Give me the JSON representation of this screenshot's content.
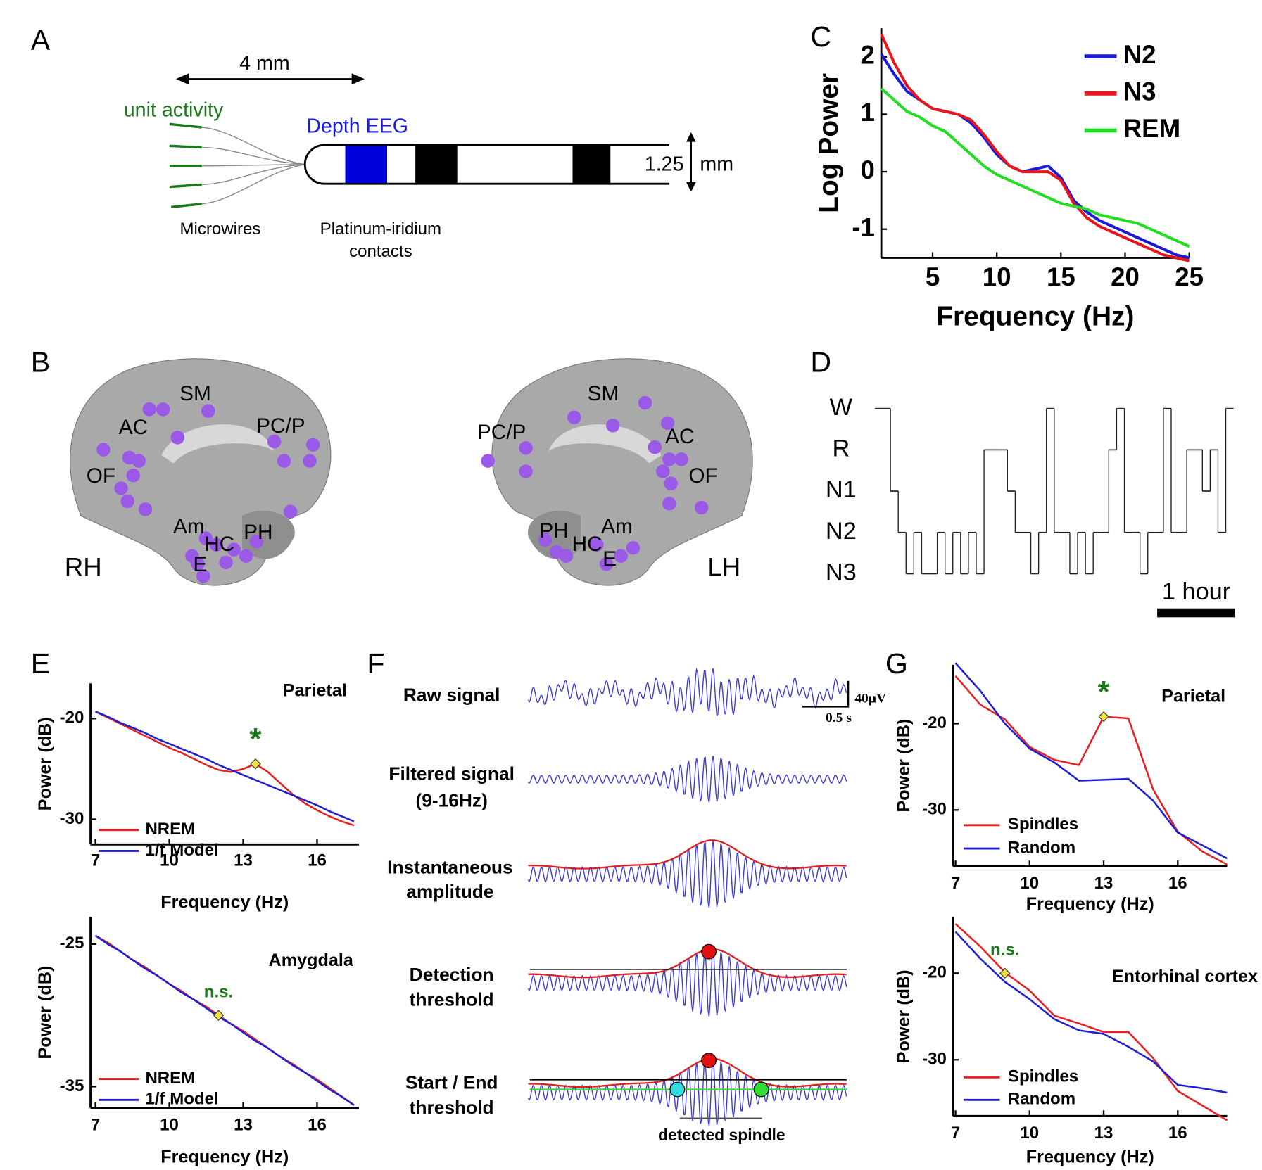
{
  "panel_labels": [
    "A",
    "B",
    "C",
    "D",
    "E",
    "F",
    "G"
  ],
  "electrode": {
    "length": "4 mm",
    "unit_activity": "unit activity",
    "depth_eeg": "Depth EEG",
    "diameter": "1.25",
    "diameter_unit": "mm",
    "microwires": "Microwires",
    "contacts": [
      "Platinum-iridium",
      "contacts"
    ]
  },
  "brain": {
    "regions": [
      "SM",
      "AC",
      "PC/P",
      "OF",
      "Am",
      "HC",
      "PH",
      "E"
    ],
    "hemispheres": [
      "RH",
      "LH"
    ]
  },
  "spindle_detection": {
    "steps": [
      [
        "Raw signal"
      ],
      [
        "Filtered signal",
        "(9-16Hz)"
      ],
      [
        "Instantaneous",
        "amplitude"
      ],
      [
        "Detection",
        "threshold"
      ],
      [
        "Start / End",
        "threshold"
      ]
    ],
    "scale_amplitude": "40µV",
    "scale_time": "0.5 s",
    "caption": "detected spindle"
  },
  "chart_data": [
    {
      "type": "line",
      "xlabel": "Frequency (Hz)",
      "ylabel": "Log Power",
      "x": [
        1,
        2,
        3,
        4,
        5,
        6,
        7,
        8,
        9,
        10,
        11,
        12,
        13,
        14,
        15,
        16,
        17,
        18,
        19,
        20,
        21,
        22,
        23,
        24,
        25
      ],
      "series": [
        {
          "name": "N2",
          "color": "#1a1adb",
          "values": [
            2.05,
            1.7,
            1.4,
            1.25,
            1.1,
            1.05,
            1.0,
            0.85,
            0.6,
            0.3,
            0.1,
            0.0,
            0.05,
            0.1,
            -0.1,
            -0.5,
            -0.7,
            -0.85,
            -0.95,
            -1.05,
            -1.15,
            -1.25,
            -1.35,
            -1.45,
            -1.5
          ]
        },
        {
          "name": "N3",
          "color": "#e8161b",
          "values": [
            2.4,
            1.9,
            1.5,
            1.25,
            1.1,
            1.05,
            1.0,
            0.9,
            0.65,
            0.35,
            0.1,
            0.0,
            0.0,
            0.0,
            -0.15,
            -0.55,
            -0.8,
            -0.95,
            -1.05,
            -1.15,
            -1.25,
            -1.35,
            -1.45,
            -1.5,
            -1.55
          ]
        },
        {
          "name": "REM",
          "color": "#22dd22",
          "values": [
            1.45,
            1.25,
            1.05,
            0.95,
            0.8,
            0.7,
            0.5,
            0.3,
            0.1,
            -0.05,
            -0.15,
            -0.25,
            -0.35,
            -0.45,
            -0.55,
            -0.6,
            -0.65,
            -0.75,
            -0.8,
            -0.85,
            -0.9,
            -1.0,
            -1.1,
            -1.2,
            -1.3
          ]
        }
      ],
      "xlim": [
        1,
        25
      ],
      "xticks": [
        5,
        10,
        15,
        20,
        25
      ],
      "ylim": [
        -1.5,
        2.5
      ],
      "yticks": [
        -1,
        0,
        1,
        2
      ],
      "legend": "upper right"
    },
    {
      "type": "hypnogram",
      "levels": [
        "W",
        "R",
        "N1",
        "N2",
        "N3"
      ],
      "x": [
        0,
        0.1,
        0.2,
        0.3,
        0.4,
        0.5,
        0.6,
        0.7,
        0.8,
        0.9,
        1.0,
        1.1,
        1.2,
        1.3,
        1.4,
        1.5,
        1.6,
        1.7,
        1.8,
        1.9,
        2.0,
        2.1,
        2.2,
        2.3,
        2.4,
        2.5,
        2.6,
        2.7,
        2.8,
        2.9,
        3.0,
        3.1,
        3.2,
        3.3,
        3.4,
        3.5,
        3.6,
        3.7,
        3.8,
        3.9,
        4.0,
        4.1,
        4.2,
        4.3,
        4.4,
        4.5
      ],
      "values": [
        "W",
        "W",
        "N1",
        "N2",
        "N3",
        "N2",
        "N3",
        "N3",
        "N2",
        "N3",
        "N2",
        "N3",
        "N2",
        "N3",
        "R",
        "R",
        "R",
        "N1",
        "N2",
        "N2",
        "N3",
        "N2",
        "W",
        "N2",
        "N2",
        "N3",
        "N2",
        "N3",
        "N2",
        "N2",
        "R",
        "W",
        "N2",
        "N2",
        "N3",
        "N2",
        "N2",
        "W",
        "N2",
        "N2",
        "R",
        "R",
        "N1",
        "R",
        "N2",
        "W"
      ],
      "xlim": [
        0,
        4.6
      ],
      "scalebar": {
        "value": 1,
        "label": "1 hour"
      }
    },
    {
      "type": "line",
      "title": "Parietal",
      "xlabel": "Frequency (Hz)",
      "ylabel": "Power (dB)",
      "x": [
        7,
        7.5,
        8,
        8.5,
        9,
        9.5,
        10,
        10.5,
        11,
        11.5,
        12,
        12.5,
        13,
        13.5,
        14,
        14.5,
        15,
        15.5,
        16,
        16.5,
        17,
        17.5
      ],
      "series": [
        {
          "name": "NREM",
          "color": "#e82020",
          "values": [
            -19.3,
            -19.9,
            -20.5,
            -21.1,
            -21.7,
            -22.3,
            -22.9,
            -23.4,
            -24.0,
            -24.6,
            -25.1,
            -25.3,
            -25.0,
            -24.5,
            -25.3,
            -26.4,
            -27.5,
            -28.4,
            -29.1,
            -29.7,
            -30.2,
            -30.6
          ]
        },
        {
          "name": "1/f Model",
          "color": "#2020d0",
          "values": [
            -19.3,
            -19.8,
            -20.4,
            -20.9,
            -21.4,
            -22.0,
            -22.5,
            -23.0,
            -23.5,
            -24.0,
            -24.6,
            -25.1,
            -25.6,
            -26.1,
            -26.6,
            -27.1,
            -27.6,
            -28.1,
            -28.6,
            -29.2,
            -29.7,
            -30.2
          ]
        }
      ],
      "xlim": [
        6.8,
        17.7
      ],
      "xticks": [
        7,
        10,
        13,
        16
      ],
      "ylim": [
        -32.5,
        -16.5
      ],
      "yticks": [
        -20,
        -30
      ],
      "legend": "lower left",
      "peak": {
        "x": 13.5,
        "y": -24.5,
        "label": "*"
      }
    },
    {
      "type": "line",
      "title": "Amygdala",
      "xlabel": "Frequency (Hz)",
      "ylabel": "Power (dB)",
      "x": [
        7,
        7.5,
        8,
        8.5,
        9,
        9.5,
        10,
        10.5,
        11,
        11.5,
        12,
        12.5,
        13,
        13.5,
        14,
        14.5,
        15,
        15.5,
        16,
        16.5,
        17,
        17.5
      ],
      "series": [
        {
          "name": "NREM",
          "color": "#e82020",
          "values": [
            -24.4,
            -24.9,
            -25.5,
            -26.1,
            -26.6,
            -27.2,
            -27.8,
            -28.3,
            -28.9,
            -29.4,
            -30.0,
            -30.6,
            -31.1,
            -31.7,
            -32.3,
            -32.9,
            -33.4,
            -34.0,
            -34.5,
            -35.1,
            -35.7,
            -36.3
          ]
        },
        {
          "name": "1/f Model",
          "color": "#2020d0",
          "values": [
            -24.4,
            -25.0,
            -25.5,
            -26.1,
            -26.7,
            -27.2,
            -27.8,
            -28.4,
            -28.9,
            -29.5,
            -30.1,
            -30.6,
            -31.2,
            -31.8,
            -32.3,
            -32.9,
            -33.5,
            -34.0,
            -34.6,
            -35.2,
            -35.7,
            -36.3
          ]
        }
      ],
      "xlim": [
        6.8,
        17.7
      ],
      "xticks": [
        7,
        10,
        13,
        16
      ],
      "ylim": [
        -36.5,
        -23.1
      ],
      "yticks": [
        -25,
        -35
      ],
      "legend": "lower left",
      "peak": {
        "x": 12,
        "y": -30.0,
        "label": "n.s."
      }
    },
    {
      "type": "line",
      "title": "Parietal",
      "xlabel": "Frequency (Hz)",
      "ylabel": "Power (dB)",
      "x": [
        7,
        8,
        9,
        10,
        11,
        12,
        13,
        14,
        15,
        16,
        17,
        18
      ],
      "series": [
        {
          "name": "Spindles",
          "color": "#e82020",
          "values": [
            -14.5,
            -17.8,
            -19.5,
            -22.7,
            -24.2,
            -24.8,
            -19.2,
            -19.4,
            -27.6,
            -32.5,
            -34.8,
            -36.3
          ]
        },
        {
          "name": "Random",
          "color": "#2020d0",
          "values": [
            -13.0,
            -16.2,
            -20.0,
            -22.9,
            -24.5,
            -26.6,
            -26.5,
            -26.4,
            -28.9,
            -32.6,
            -34.1,
            -35.6
          ]
        }
      ],
      "xlim": [
        6.9,
        18
      ],
      "xticks": [
        7,
        10,
        13,
        16
      ],
      "ylim": [
        -36.5,
        -13.2
      ],
      "yticks": [
        -20,
        -30
      ],
      "legend": "lower left",
      "peak": {
        "x": 13,
        "y": -19.2,
        "label": "*"
      }
    },
    {
      "type": "line",
      "title": "Entorhinal cortex",
      "xlabel": "Frequency (Hz)",
      "ylabel": "Power (dB)",
      "x": [
        7,
        8,
        9,
        10,
        11,
        12,
        13,
        14,
        15,
        16,
        17,
        18
      ],
      "series": [
        {
          "name": "Spindles",
          "color": "#e82020",
          "values": [
            -14.3,
            -16.9,
            -19.9,
            -22.0,
            -24.9,
            -25.8,
            -26.8,
            -26.8,
            -29.8,
            -33.6,
            -35.3,
            -37.0
          ]
        },
        {
          "name": "Random",
          "color": "#2020d0",
          "values": [
            -15.2,
            -18.3,
            -21.0,
            -23.0,
            -25.3,
            -26.6,
            -27.0,
            -28.5,
            -30.2,
            -32.9,
            -33.3,
            -33.8
          ]
        }
      ],
      "xlim": [
        6.9,
        18
      ],
      "xticks": [
        7,
        10,
        13,
        16
      ],
      "ylim": [
        -36.5,
        -13.5
      ],
      "yticks": [
        -20,
        -30
      ],
      "legend": "lower left",
      "peak": {
        "x": 9,
        "y": -20.0,
        "label": "n.s."
      }
    }
  ]
}
